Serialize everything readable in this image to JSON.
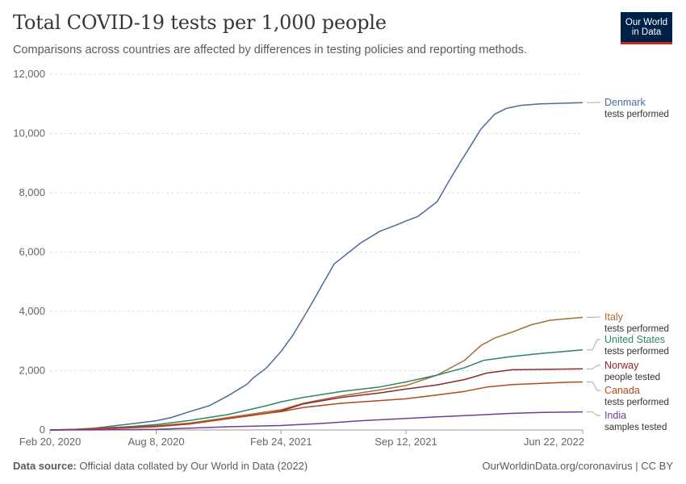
{
  "header": {
    "title": "Total COVID-19 tests per 1,000 people",
    "subtitle": "Comparisons across countries are affected by differences in testing policies and reporting methods.",
    "logo_line1": "Our World",
    "logo_line2": "in Data"
  },
  "footer": {
    "source_label": "Data source:",
    "source_text": "Official data collated by Our World in Data (2022)",
    "right_text": "OurWorldinData.org/coronavirus | CC BY"
  },
  "colors": {
    "grid": "#dddddd",
    "axis": "#999999",
    "leader": "#aaaaaa"
  },
  "chart_data": {
    "type": "line",
    "title": "Total COVID-19 tests per 1,000 people",
    "ylim": [
      0,
      12000
    ],
    "x_range": [
      "2020-02-20",
      "2022-06-22"
    ],
    "yticks": [
      0,
      2000,
      4000,
      6000,
      8000,
      10000,
      12000
    ],
    "ytick_labels": [
      "0",
      "2,000",
      "4,000",
      "6,000",
      "8,000",
      "10,000",
      "12,000"
    ],
    "xticks": [
      "2020-02-20",
      "2020-08-08",
      "2021-02-24",
      "2021-09-12",
      "2022-06-22"
    ],
    "xtick_labels": [
      "Feb 20, 2020",
      "Aug 8, 2020",
      "Feb 24, 2021",
      "Sep 12, 2021",
      "Jun 22, 2022"
    ],
    "grid": "horizontal dashed",
    "legend": "end-of-line labels on the right",
    "series": [
      {
        "name": "Denmark",
        "note": "tests performed",
        "color": "#4c6a9c",
        "points": [
          [
            "2020-02-20",
            0
          ],
          [
            "2020-04-01",
            12
          ],
          [
            "2020-05-01",
            60
          ],
          [
            "2020-06-01",
            140
          ],
          [
            "2020-07-01",
            210
          ],
          [
            "2020-08-08",
            310
          ],
          [
            "2020-09-01",
            420
          ],
          [
            "2020-10-01",
            620
          ],
          [
            "2020-11-01",
            820
          ],
          [
            "2020-12-01",
            1150
          ],
          [
            "2021-01-01",
            1550
          ],
          [
            "2021-01-10",
            1750
          ],
          [
            "2021-02-01",
            2100
          ],
          [
            "2021-02-24",
            2650
          ],
          [
            "2021-03-15",
            3200
          ],
          [
            "2021-04-01",
            3800
          ],
          [
            "2021-04-15",
            4300
          ],
          [
            "2021-05-01",
            4900
          ],
          [
            "2021-05-20",
            5600
          ],
          [
            "2021-06-10",
            5950
          ],
          [
            "2021-07-01",
            6300
          ],
          [
            "2021-08-01",
            6700
          ],
          [
            "2021-09-01",
            6950
          ],
          [
            "2021-09-12",
            7050
          ],
          [
            "2021-10-01",
            7200
          ],
          [
            "2021-11-01",
            7700
          ],
          [
            "2021-11-20",
            8400
          ],
          [
            "2021-12-10",
            9100
          ],
          [
            "2021-12-25",
            9600
          ],
          [
            "2022-01-10",
            10150
          ],
          [
            "2022-02-01",
            10650
          ],
          [
            "2022-02-20",
            10850
          ],
          [
            "2022-03-15",
            10950
          ],
          [
            "2022-04-15",
            11000
          ],
          [
            "2022-06-22",
            11040
          ]
        ]
      },
      {
        "name": "Italy",
        "note": "tests performed",
        "color": "#a46d37",
        "points": [
          [
            "2020-02-20",
            0
          ],
          [
            "2020-04-01",
            25
          ],
          [
            "2020-06-01",
            90
          ],
          [
            "2020-08-08",
            140
          ],
          [
            "2020-10-01",
            230
          ],
          [
            "2020-12-01",
            420
          ],
          [
            "2021-02-01",
            610
          ],
          [
            "2021-02-24",
            680
          ],
          [
            "2021-04-01",
            900
          ],
          [
            "2021-06-01",
            1150
          ],
          [
            "2021-08-01",
            1350
          ],
          [
            "2021-09-12",
            1500
          ],
          [
            "2021-11-01",
            1850
          ],
          [
            "2021-12-15",
            2350
          ],
          [
            "2022-01-10",
            2850
          ],
          [
            "2022-02-01",
            3100
          ],
          [
            "2022-03-01",
            3300
          ],
          [
            "2022-04-01",
            3550
          ],
          [
            "2022-05-01",
            3700
          ],
          [
            "2022-06-22",
            3800
          ]
        ]
      },
      {
        "name": "United States",
        "note": "tests performed",
        "color": "#2e8566",
        "points": [
          [
            "2020-02-20",
            0
          ],
          [
            "2020-04-01",
            10
          ],
          [
            "2020-06-01",
            70
          ],
          [
            "2020-08-08",
            180
          ],
          [
            "2020-10-01",
            320
          ],
          [
            "2020-12-01",
            520
          ],
          [
            "2021-02-01",
            820
          ],
          [
            "2021-02-24",
            950
          ],
          [
            "2021-04-01",
            1100
          ],
          [
            "2021-06-01",
            1300
          ],
          [
            "2021-08-01",
            1450
          ],
          [
            "2021-09-12",
            1620
          ],
          [
            "2021-11-01",
            1850
          ],
          [
            "2021-12-15",
            2100
          ],
          [
            "2022-01-15",
            2350
          ],
          [
            "2022-03-01",
            2480
          ],
          [
            "2022-04-15",
            2580
          ],
          [
            "2022-06-22",
            2700
          ]
        ]
      },
      {
        "name": "Norway",
        "note": "people tested",
        "color": "#8b2b2b",
        "points": [
          [
            "2020-02-20",
            0
          ],
          [
            "2020-04-01",
            15
          ],
          [
            "2020-06-01",
            60
          ],
          [
            "2020-08-08",
            120
          ],
          [
            "2020-10-01",
            210
          ],
          [
            "2020-12-01",
            380
          ],
          [
            "2021-02-01",
            560
          ],
          [
            "2021-02-24",
            640
          ],
          [
            "2021-04-01",
            880
          ],
          [
            "2021-06-01",
            1100
          ],
          [
            "2021-08-01",
            1250
          ],
          [
            "2021-09-12",
            1380
          ],
          [
            "2021-11-01",
            1520
          ],
          [
            "2021-12-15",
            1700
          ],
          [
            "2022-01-20",
            1920
          ],
          [
            "2022-03-01",
            2030
          ],
          [
            "2022-06-22",
            2060
          ]
        ]
      },
      {
        "name": "Canada",
        "note": "tests performed",
        "color": "#b5461f",
        "points": [
          [
            "2020-02-20",
            0
          ],
          [
            "2020-04-01",
            12
          ],
          [
            "2020-06-01",
            50
          ],
          [
            "2020-08-08",
            110
          ],
          [
            "2020-10-01",
            200
          ],
          [
            "2020-12-01",
            380
          ],
          [
            "2021-02-01",
            560
          ],
          [
            "2021-02-24",
            620
          ],
          [
            "2021-04-01",
            760
          ],
          [
            "2021-06-01",
            900
          ],
          [
            "2021-08-01",
            990
          ],
          [
            "2021-09-12",
            1050
          ],
          [
            "2021-11-01",
            1180
          ],
          [
            "2021-12-15",
            1300
          ],
          [
            "2022-01-20",
            1450
          ],
          [
            "2022-03-01",
            1530
          ],
          [
            "2022-06-01",
            1610
          ],
          [
            "2022-06-22",
            1620
          ]
        ]
      },
      {
        "name": "India",
        "note": "samples tested",
        "color": "#6d3e91",
        "points": [
          [
            "2020-02-20",
            0
          ],
          [
            "2020-06-01",
            5
          ],
          [
            "2020-08-08",
            20
          ],
          [
            "2020-10-01",
            60
          ],
          [
            "2020-12-01",
            110
          ],
          [
            "2021-02-24",
            150
          ],
          [
            "2021-05-01",
            220
          ],
          [
            "2021-07-01",
            310
          ],
          [
            "2021-09-12",
            390
          ],
          [
            "2021-11-01",
            440
          ],
          [
            "2022-01-01",
            500
          ],
          [
            "2022-03-01",
            560
          ],
          [
            "2022-04-20",
            590
          ],
          [
            "2022-06-22",
            610
          ]
        ]
      }
    ]
  }
}
